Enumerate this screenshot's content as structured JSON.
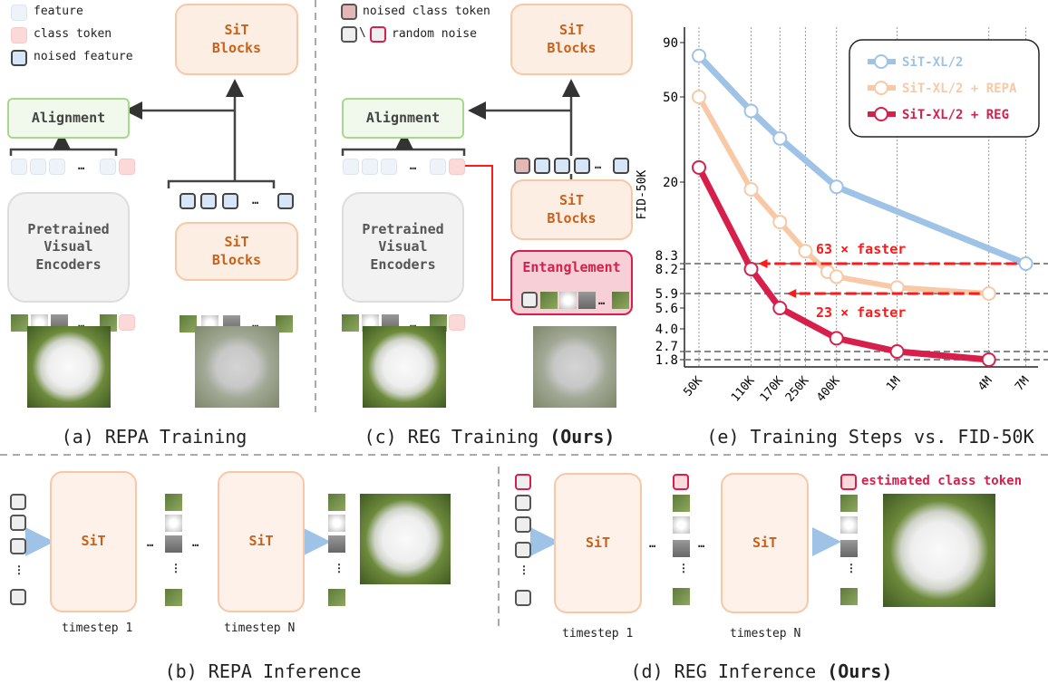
{
  "legend_a": {
    "feature": "feature",
    "class_token": "class token",
    "noised_feature": "noised feature"
  },
  "legend_c": {
    "noised_class_token": "noised class token",
    "random_noise_sep": "\\",
    "random_noise": "random noise"
  },
  "blocks": {
    "sit_blocks_line1": "SiT",
    "sit_blocks_line2": "Blocks",
    "alignment": "Alignment",
    "encoder_line1": "Pretrained",
    "encoder_line2": "Visual",
    "encoder_line3": "Encoders",
    "entanglement": "Entanglement",
    "sit": "SiT",
    "ellipsis": "…",
    "vdots": "⋮"
  },
  "inference": {
    "timestep_1": "timestep 1",
    "timestep_n": "timestep N",
    "estimated_class_token": "estimated class token"
  },
  "captions": {
    "a": "(a) REPA Training",
    "b": "(b) REPA Inference",
    "c_prefix": "(c) REG Training ",
    "c_bold": "(Ours)",
    "d_prefix": "(d) REG Inference ",
    "d_bold": "(Ours)",
    "e": "(e) Training Steps vs. FID-50K"
  },
  "colors": {
    "sit": "#9fc3e7",
    "repa": "#f7c9a6",
    "reg": "#d6204b",
    "arrow": "#ff1a1a"
  },
  "chart_data": {
    "type": "line",
    "title": "Training Steps vs. FID-50K",
    "xlabel": "",
    "ylabel": "FID-50K",
    "x_scale": "log",
    "y_scale": "log",
    "x_ticks": [
      "50K",
      "110K",
      "170K",
      "250K",
      "400K",
      "1M",
      "4M",
      "7M"
    ],
    "x_tick_values": [
      50000,
      110000,
      170000,
      250000,
      400000,
      1000000,
      4000000,
      7000000
    ],
    "y_ticks": [
      "1.8",
      "2.7",
      "4.0",
      "5.6",
      "5.9",
      "8.2",
      "8.3",
      "20",
      "50",
      "90"
    ],
    "y_tick_values": [
      1.8,
      2.7,
      4.0,
      5.6,
      5.9,
      8.2,
      8.3,
      20,
      50,
      90
    ],
    "grid": "vertical dotted",
    "legend_position": "top-right",
    "series": [
      {
        "name": "SiT-XL/2",
        "color": "#9fc3e7",
        "x": [
          50000,
          110000,
          170000,
          400000,
          7000000
        ],
        "y": [
          78,
          43,
          32,
          19,
          8.3
        ]
      },
      {
        "name": "SiT-XL/2 + REPA",
        "color": "#f7c9a6",
        "x": [
          50000,
          110000,
          170000,
          250000,
          350000,
          400000,
          1000000,
          4000000
        ],
        "y": [
          50,
          18.5,
          13,
          9.5,
          7.9,
          7.4,
          6.4,
          5.9
        ]
      },
      {
        "name": "SiT-XL/2 + REG",
        "color": "#d6204b",
        "x": [
          50000,
          110000,
          170000,
          400000,
          1000000,
          4000000
        ],
        "y": [
          23.4,
          8.2,
          5.6,
          3.4,
          2.7,
          1.8
        ]
      }
    ],
    "reference_lines": [
      8.3,
      5.9,
      2.7,
      1.8
    ],
    "annotations": [
      {
        "text": "63 × faster",
        "from_x": 7000000,
        "to_x": 110000,
        "y": 8.3
      },
      {
        "text": "23 × faster",
        "from_x": 4000000,
        "to_x": 170000,
        "y": 5.9
      }
    ]
  }
}
